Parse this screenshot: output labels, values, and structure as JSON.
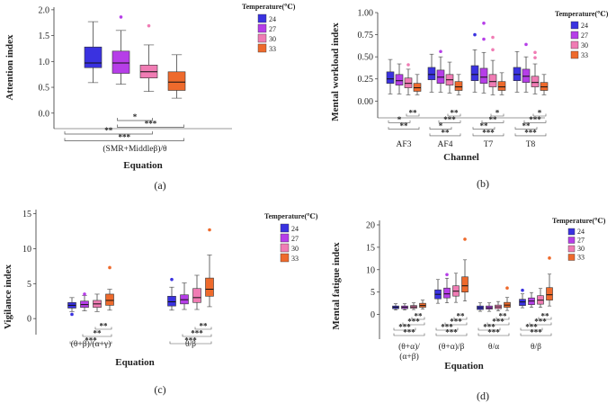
{
  "colors": {
    "24": "#3a32e0",
    "27": "#b63ee8",
    "30": "#f07cb4",
    "33": "#ee6a2c",
    "whisker": "#444444",
    "bracket": "#555555"
  },
  "chart_data": [
    {
      "id": "a",
      "type": "box",
      "title": "",
      "xlabel": "Equation",
      "ylabel": "Attention index",
      "panel_label": "(a)",
      "ylim": [
        -0.3,
        2.05
      ],
      "yticks": [
        "2.0",
        "1.5",
        "1.0",
        "0.5",
        "0.0"
      ],
      "ytick_values": [
        2.0,
        1.5,
        1.0,
        0.5,
        0.0
      ],
      "legend_title": "Temperature(℃)",
      "legend": [
        "24",
        "27",
        "30",
        "33"
      ],
      "categories": [
        "(SMR+Middleβ)/θ"
      ],
      "groups": [
        {
          "category": "(SMR+Middleβ)/θ",
          "boxes": [
            {
              "temp": "24",
              "min": 0.59,
              "q1": 0.88,
              "median": 0.97,
              "q3": 1.28,
              "max": 1.77,
              "outliers": []
            },
            {
              "temp": "27",
              "min": 0.56,
              "q1": 0.77,
              "median": 0.97,
              "q3": 1.2,
              "max": 1.6,
              "outliers": [
                1.86
              ]
            },
            {
              "temp": "30",
              "min": 0.42,
              "q1": 0.68,
              "median": 0.8,
              "q3": 0.93,
              "max": 1.32,
              "outliers": [
                1.69
              ]
            },
            {
              "temp": "33",
              "min": 0.29,
              "q1": 0.44,
              "median": 0.6,
              "q3": 0.8,
              "max": 1.13,
              "outliers": []
            }
          ]
        }
      ],
      "significance": [
        {
          "from": 1,
          "to": 2,
          "label": "*"
        },
        {
          "from": 1,
          "to": 3,
          "label": "***"
        },
        {
          "from": 0,
          "to": 2,
          "label": "**"
        },
        {
          "from": 0,
          "to": 3,
          "label": "***"
        }
      ]
    },
    {
      "id": "b",
      "type": "box",
      "title": "",
      "xlabel": "Channel",
      "ylabel": "Mental workload index",
      "panel_label": "(b)",
      "ylim": [
        -0.19,
        1.0
      ],
      "yticks": [
        "1.00",
        "0.75",
        "0.50",
        "0.25",
        "0.00"
      ],
      "ytick_values": [
        1.0,
        0.75,
        0.5,
        0.25,
        0.0
      ],
      "legend_title": "Temperature(℃)",
      "legend": [
        "24",
        "27",
        "30",
        "33"
      ],
      "categories": [
        "AF3",
        "AF4",
        "T7",
        "T8"
      ],
      "groups": [
        {
          "category": "AF3",
          "boxes": [
            {
              "temp": "24",
              "min": 0.08,
              "q1": 0.2,
              "median": 0.25,
              "q3": 0.33,
              "max": 0.47,
              "outliers": []
            },
            {
              "temp": "27",
              "min": 0.08,
              "q1": 0.18,
              "median": 0.23,
              "q3": 0.3,
              "max": 0.42,
              "outliers": []
            },
            {
              "temp": "30",
              "min": 0.07,
              "q1": 0.15,
              "median": 0.2,
              "q3": 0.26,
              "max": 0.36,
              "outliers": [
                0.41
              ]
            },
            {
              "temp": "33",
              "min": 0.07,
              "q1": 0.11,
              "median": 0.15,
              "q3": 0.2,
              "max": 0.3,
              "outliers": []
            }
          ]
        },
        {
          "category": "AF4",
          "boxes": [
            {
              "temp": "24",
              "min": 0.1,
              "q1": 0.24,
              "median": 0.3,
              "q3": 0.38,
              "max": 0.53,
              "outliers": []
            },
            {
              "temp": "27",
              "min": 0.1,
              "q1": 0.2,
              "median": 0.27,
              "q3": 0.35,
              "max": 0.5,
              "outliers": [
                0.56
              ]
            },
            {
              "temp": "30",
              "min": 0.09,
              "q1": 0.18,
              "median": 0.24,
              "q3": 0.3,
              "max": 0.44,
              "outliers": []
            },
            {
              "temp": "33",
              "min": 0.07,
              "q1": 0.12,
              "median": 0.16,
              "q3": 0.22,
              "max": 0.3,
              "outliers": []
            }
          ]
        },
        {
          "category": "T7",
          "boxes": [
            {
              "temp": "24",
              "min": 0.1,
              "q1": 0.23,
              "median": 0.3,
              "q3": 0.4,
              "max": 0.58,
              "outliers": [
                0.75
              ]
            },
            {
              "temp": "27",
              "min": 0.09,
              "q1": 0.2,
              "median": 0.27,
              "q3": 0.37,
              "max": 0.55,
              "outliers": [
                0.88,
                0.7
              ]
            },
            {
              "temp": "30",
              "min": 0.07,
              "q1": 0.16,
              "median": 0.22,
              "q3": 0.3,
              "max": 0.46,
              "outliers": [
                0.72,
                0.58
              ]
            },
            {
              "temp": "33",
              "min": 0.07,
              "q1": 0.12,
              "median": 0.16,
              "q3": 0.22,
              "max": 0.32,
              "outliers": []
            }
          ]
        },
        {
          "category": "T8",
          "boxes": [
            {
              "temp": "24",
              "min": 0.1,
              "q1": 0.23,
              "median": 0.3,
              "q3": 0.38,
              "max": 0.56,
              "outliers": []
            },
            {
              "temp": "27",
              "min": 0.1,
              "q1": 0.21,
              "median": 0.28,
              "q3": 0.36,
              "max": 0.5,
              "outliers": [
                0.64
              ]
            },
            {
              "temp": "30",
              "min": 0.08,
              "q1": 0.16,
              "median": 0.21,
              "q3": 0.28,
              "max": 0.42,
              "outliers": [
                0.55,
                0.49
              ]
            },
            {
              "temp": "33",
              "min": 0.07,
              "q1": 0.12,
              "median": 0.16,
              "q3": 0.21,
              "max": 0.3,
              "outliers": []
            }
          ]
        }
      ],
      "significance": [
        {
          "group": "AF3",
          "brackets": [
            {
              "from": 2,
              "to": 3,
              "label": "**"
            },
            {
              "from": 0,
              "to": 2,
              "label": "*"
            },
            {
              "from": 0,
              "to": 3,
              "label": "**"
            }
          ]
        },
        {
          "group": "AF4",
          "brackets": [
            {
              "from": 2,
              "to": 3,
              "label": "**"
            },
            {
              "from": 1,
              "to": 3,
              "label": "***"
            },
            {
              "from": 0,
              "to": 2,
              "label": "*"
            },
            {
              "from": 0,
              "to": 3,
              "label": "**"
            }
          ]
        },
        {
          "group": "T7",
          "brackets": [
            {
              "from": 2,
              "to": 3,
              "label": "*"
            },
            {
              "from": 1,
              "to": 3,
              "label": "**"
            },
            {
              "from": 0,
              "to": 2,
              "label": "**"
            },
            {
              "from": 0,
              "to": 3,
              "label": "***"
            }
          ]
        },
        {
          "group": "T8",
          "brackets": [
            {
              "from": 2,
              "to": 3,
              "label": "*"
            },
            {
              "from": 1,
              "to": 3,
              "label": "***"
            },
            {
              "from": 0,
              "to": 2,
              "label": "**"
            },
            {
              "from": 0,
              "to": 3,
              "label": "***"
            }
          ]
        }
      ]
    },
    {
      "id": "c",
      "type": "box",
      "title": "",
      "xlabel": "Equation",
      "ylabel": "Vigilance index",
      "panel_label": "(c)",
      "ylim": [
        -2.3,
        15.6
      ],
      "yticks": [
        "15",
        "10",
        "5",
        "0"
      ],
      "ytick_values": [
        15,
        10,
        5,
        0
      ],
      "legend_title": "Temperature(℃)",
      "legend": [
        "24",
        "27",
        "30",
        "33"
      ],
      "categories": [
        "(θ+β)/(α+γ)",
        "θ/β"
      ],
      "groups": [
        {
          "category": "(θ+β)/(α+γ)",
          "boxes": [
            {
              "temp": "24",
              "min": 1.0,
              "q1": 1.5,
              "median": 1.9,
              "q3": 2.3,
              "max": 3.0,
              "outliers": [
                0.6
              ]
            },
            {
              "temp": "27",
              "min": 1.1,
              "q1": 1.6,
              "median": 2.0,
              "q3": 2.5,
              "max": 3.3,
              "outliers": [
                3.5
              ]
            },
            {
              "temp": "30",
              "min": 1.0,
              "q1": 1.6,
              "median": 2.1,
              "q3": 2.6,
              "max": 3.5,
              "outliers": []
            },
            {
              "temp": "33",
              "min": 1.2,
              "q1": 1.9,
              "median": 2.6,
              "q3": 3.5,
              "max": 4.2,
              "outliers": [
                7.3
              ]
            }
          ]
        },
        {
          "category": "θ/β",
          "boxes": [
            {
              "temp": "24",
              "min": 1.2,
              "q1": 1.8,
              "median": 2.4,
              "q3": 3.2,
              "max": 4.5,
              "outliers": [
                5.6
              ]
            },
            {
              "temp": "27",
              "min": 1.3,
              "q1": 2.1,
              "median": 2.7,
              "q3": 3.4,
              "max": 5.1,
              "outliers": []
            },
            {
              "temp": "30",
              "min": 1.3,
              "q1": 2.3,
              "median": 3.0,
              "q3": 4.3,
              "max": 6.2,
              "outliers": []
            },
            {
              "temp": "33",
              "min": 1.7,
              "q1": 3.2,
              "median": 4.2,
              "q3": 5.8,
              "max": 9.1,
              "outliers": [
                12.7
              ]
            }
          ]
        }
      ],
      "significance": [
        {
          "group": "(θ+β)/(α+γ)",
          "brackets": [
            {
              "from": 2,
              "to": 3,
              "label": "**"
            },
            {
              "from": 1,
              "to": 3,
              "label": "**"
            },
            {
              "from": 0,
              "to": 3,
              "label": "***"
            }
          ]
        },
        {
          "group": "θ/β",
          "brackets": [
            {
              "from": 2,
              "to": 3,
              "label": "**"
            },
            {
              "from": 1,
              "to": 3,
              "label": "***"
            },
            {
              "from": 0,
              "to": 3,
              "label": "***"
            }
          ]
        }
      ]
    },
    {
      "id": "d",
      "type": "box",
      "title": "",
      "xlabel": "Equation",
      "ylabel": "Mental fatigue index",
      "panel_label": "(d)",
      "ylim": [
        -5.5,
        21.0
      ],
      "yticks": [
        "20",
        "15",
        "10",
        "5",
        "0"
      ],
      "ytick_values": [
        20,
        15,
        10,
        5,
        0
      ],
      "legend_title": "Temperature(℃)",
      "legend": [
        "24",
        "27",
        "30",
        "33"
      ],
      "categories": [
        "(θ+α)/(α+β)",
        "(θ+α)/β",
        "θ/α",
        "θ/β"
      ],
      "category_lines": [
        [
          "(θ+α)/",
          "(α+β)"
        ],
        [
          "(θ+α)/β"
        ],
        [
          "θ/α"
        ],
        [
          "θ/β"
        ]
      ],
      "groups": [
        {
          "category": "(θ+α)/(α+β)",
          "boxes": [
            {
              "temp": "24",
              "min": 1.0,
              "q1": 1.3,
              "median": 1.6,
              "q3": 1.9,
              "max": 2.4,
              "outliers": []
            },
            {
              "temp": "27",
              "min": 1.0,
              "q1": 1.3,
              "median": 1.6,
              "q3": 1.9,
              "max": 2.4,
              "outliers": []
            },
            {
              "temp": "30",
              "min": 1.1,
              "q1": 1.4,
              "median": 1.7,
              "q3": 2.0,
              "max": 2.6,
              "outliers": []
            },
            {
              "temp": "33",
              "min": 1.2,
              "q1": 1.6,
              "median": 2.0,
              "q3": 2.5,
              "max": 3.2,
              "outliers": []
            }
          ]
        },
        {
          "category": "(θ+α)/β",
          "boxes": [
            {
              "temp": "24",
              "min": 2.5,
              "q1": 3.5,
              "median": 4.5,
              "q3": 5.5,
              "max": 7.8,
              "outliers": []
            },
            {
              "temp": "27",
              "min": 2.6,
              "q1": 3.7,
              "median": 4.6,
              "q3": 5.9,
              "max": 8.1,
              "outliers": [
                8.9
              ]
            },
            {
              "temp": "30",
              "min": 2.7,
              "q1": 4.1,
              "median": 5.2,
              "q3": 6.4,
              "max": 9.2,
              "outliers": []
            },
            {
              "temp": "33",
              "min": 3.0,
              "q1": 5.0,
              "median": 6.4,
              "q3": 8.4,
              "max": 12.2,
              "outliers": [
                16.8
              ]
            }
          ]
        },
        {
          "category": "θ/α",
          "boxes": [
            {
              "temp": "24",
              "min": 0.7,
              "q1": 1.1,
              "median": 1.5,
              "q3": 1.9,
              "max": 2.6,
              "outliers": []
            },
            {
              "temp": "27",
              "min": 0.7,
              "q1": 1.2,
              "median": 1.5,
              "q3": 1.9,
              "max": 2.6,
              "outliers": []
            },
            {
              "temp": "30",
              "min": 0.8,
              "q1": 1.3,
              "median": 1.7,
              "q3": 2.1,
              "max": 2.9,
              "outliers": []
            },
            {
              "temp": "33",
              "min": 0.9,
              "q1": 1.6,
              "median": 2.1,
              "q3": 2.7,
              "max": 3.8,
              "outliers": [
                5.9
              ]
            }
          ]
        },
        {
          "category": "θ/β",
          "boxes": [
            {
              "temp": "24",
              "min": 1.5,
              "q1": 2.0,
              "median": 2.8,
              "q3": 3.4,
              "max": 4.6,
              "outliers": [
                5.4
              ]
            },
            {
              "temp": "27",
              "min": 1.6,
              "q1": 2.2,
              "median": 3.0,
              "q3": 3.7,
              "max": 4.9,
              "outliers": []
            },
            {
              "temp": "30",
              "min": 1.6,
              "q1": 2.3,
              "median": 3.2,
              "q3": 4.2,
              "max": 5.8,
              "outliers": []
            },
            {
              "temp": "33",
              "min": 1.9,
              "q1": 3.2,
              "median": 4.4,
              "q3": 6.0,
              "max": 9.0,
              "outliers": [
                12.6
              ]
            }
          ]
        }
      ],
      "significance": [
        {
          "group": "(θ+α)/(α+β)",
          "brackets": [
            {
              "from": 2,
              "to": 3,
              "label": "**"
            },
            {
              "from": 1,
              "to": 3,
              "label": "***"
            },
            {
              "from": 0,
              "to": 2,
              "label": "***"
            },
            {
              "from": 0,
              "to": 3,
              "label": "***"
            }
          ]
        },
        {
          "group": "(θ+α)/β",
          "brackets": [
            {
              "from": 2,
              "to": 3,
              "label": "**"
            },
            {
              "from": 1,
              "to": 3,
              "label": "***"
            },
            {
              "from": 0,
              "to": 2,
              "label": "***"
            },
            {
              "from": 0,
              "to": 3,
              "label": "***"
            }
          ]
        },
        {
          "group": "θ/α",
          "brackets": [
            {
              "from": 2,
              "to": 3,
              "label": "**"
            },
            {
              "from": 1,
              "to": 3,
              "label": "***"
            },
            {
              "from": 0,
              "to": 2,
              "label": "***"
            },
            {
              "from": 0,
              "to": 3,
              "label": "***"
            }
          ]
        },
        {
          "group": "θ/β",
          "brackets": [
            {
              "from": 2,
              "to": 3,
              "label": "**"
            },
            {
              "from": 1,
              "to": 3,
              "label": "***"
            },
            {
              "from": 0,
              "to": 2,
              "label": "***"
            },
            {
              "from": 0,
              "to": 3,
              "label": "***"
            }
          ]
        }
      ]
    }
  ]
}
